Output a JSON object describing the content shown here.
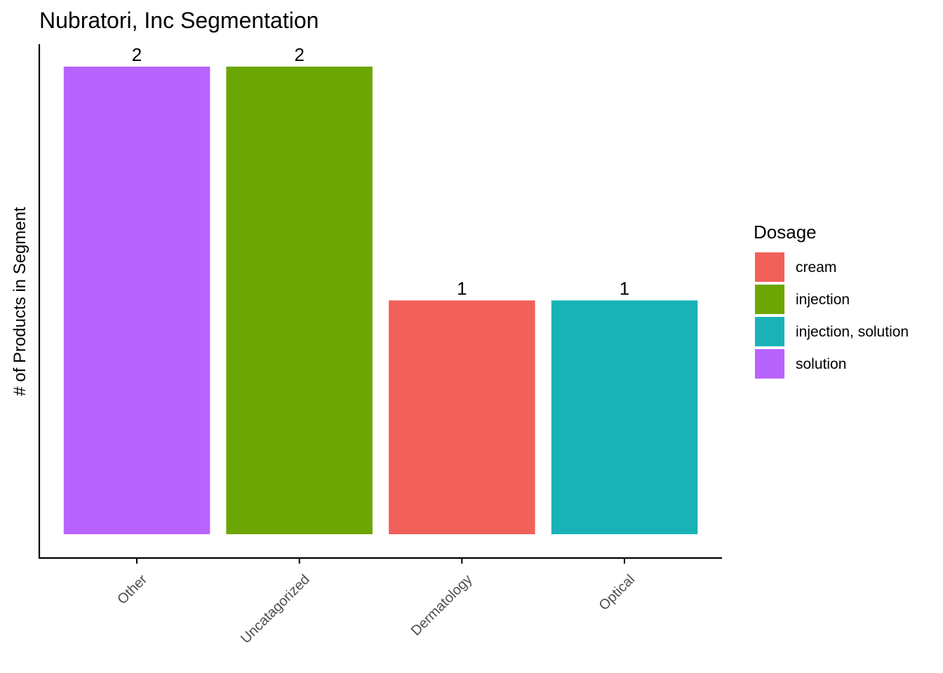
{
  "chart_data": {
    "type": "bar",
    "title": "Nubratori, Inc Segmentation",
    "xlabel": "",
    "ylabel": "# of Products in Segment",
    "categories": [
      "Other",
      "Uncatagorized",
      "Dermatology",
      "Optical"
    ],
    "values": [
      2,
      2,
      1,
      1
    ],
    "bar_dosage": [
      "solution",
      "injection",
      "cream",
      "injection, solution"
    ],
    "data_labels": [
      "2",
      "2",
      "1",
      "1"
    ],
    "ylim": [
      0,
      2.1
    ],
    "grid": false,
    "legend": {
      "title": "Dosage",
      "position": "right",
      "entries": [
        {
          "label": "cream",
          "color": "#F8766D"
        },
        {
          "label": "injection",
          "color": "#7CAE00"
        },
        {
          "label": "injection, solution",
          "color": "#00BFC4"
        },
        {
          "label": "solution",
          "color": "#C77CFF"
        }
      ]
    },
    "colors": {
      "cream": "#F2605A",
      "injection": "#6CA603",
      "injection, solution": "#19B3B7",
      "solution": "#B963FF"
    }
  }
}
